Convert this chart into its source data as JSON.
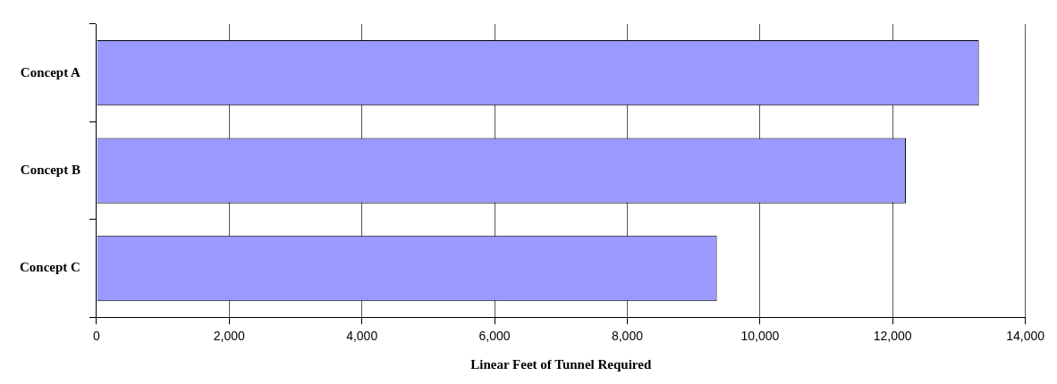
{
  "chart_data": {
    "type": "bar",
    "orientation": "horizontal",
    "xlabel": "Linear Feet of Tunnel Required",
    "categories": [
      "Concept A",
      "Concept B",
      "Concept C"
    ],
    "values": [
      13300,
      12200,
      9350
    ],
    "color": "#9999ff",
    "xlim": [
      0,
      14000
    ],
    "xticks": [
      0,
      {
        "value": 2000,
        "label": "2,000"
      },
      {
        "value": 4000,
        "label": "4,000"
      },
      {
        "value": 6000,
        "label": "6,000"
      },
      {
        "value": 8000,
        "label": "8,000"
      },
      {
        "value": 10000,
        "label": "10,000"
      },
      {
        "value": 12000,
        "label": "12,000"
      },
      {
        "value": 14000,
        "label": "14,000"
      }
    ],
    "grid": "x",
    "legend": false
  }
}
